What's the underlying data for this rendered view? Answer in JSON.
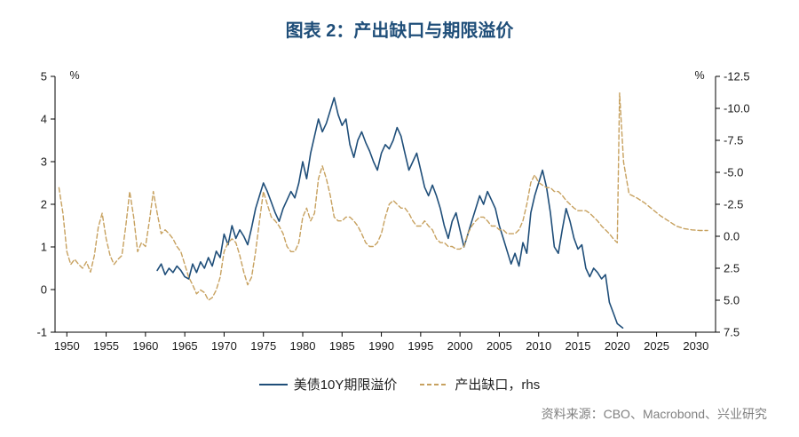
{
  "page": {
    "title": "图表 2：产出缺口与期限溢价",
    "source": "资料来源：CBO、Macrobond、兴业研究"
  },
  "chart_data": {
    "type": "line",
    "title": "图表 2：产出缺口与期限溢价",
    "legend_position": "bottom",
    "x_axis": {
      "min": 1948.5,
      "max": 2032.5,
      "ticks": [
        "1950",
        "1955",
        "1960",
        "1965",
        "1970",
        "1975",
        "1980",
        "1985",
        "1990",
        "1995",
        "2000",
        "2005",
        "2010",
        "2015",
        "2020",
        "2025",
        "2030"
      ]
    },
    "left_axis": {
      "label": "%",
      "min": -1,
      "max": 5,
      "ticks": [
        "5",
        "4",
        "3",
        "2",
        "1",
        "0",
        "-1"
      ]
    },
    "right_axis": {
      "label": "%",
      "top": -12.5,
      "bottom": 7.5,
      "inverted": true,
      "ticks": [
        "-12.5",
        "-10.0",
        "-7.5",
        "-5.0",
        "-2.5",
        "0.0",
        "2.5",
        "5.0",
        "7.5"
      ]
    },
    "series": [
      {
        "name": "美债10Y期限溢价",
        "axis": "left",
        "style": "solid",
        "color": "#1f4e79",
        "width": 1.6,
        "points": [
          [
            1961.5,
            0.45
          ],
          [
            1962,
            0.6
          ],
          [
            1962.5,
            0.35
          ],
          [
            1963,
            0.5
          ],
          [
            1963.5,
            0.4
          ],
          [
            1964,
            0.55
          ],
          [
            1964.5,
            0.45
          ],
          [
            1965,
            0.3
          ],
          [
            1965.5,
            0.25
          ],
          [
            1966,
            0.6
          ],
          [
            1966.5,
            0.4
          ],
          [
            1967,
            0.65
          ],
          [
            1967.5,
            0.5
          ],
          [
            1968,
            0.75
          ],
          [
            1968.5,
            0.55
          ],
          [
            1969,
            0.9
          ],
          [
            1969.5,
            0.75
          ],
          [
            1970,
            1.3
          ],
          [
            1970.5,
            1.05
          ],
          [
            1971,
            1.5
          ],
          [
            1971.5,
            1.2
          ],
          [
            1972,
            1.4
          ],
          [
            1972.5,
            1.25
          ],
          [
            1973,
            1.05
          ],
          [
            1973.5,
            1.45
          ],
          [
            1974,
            1.9
          ],
          [
            1974.5,
            2.2
          ],
          [
            1975,
            2.5
          ],
          [
            1975.5,
            2.3
          ],
          [
            1976,
            2.05
          ],
          [
            1976.5,
            1.8
          ],
          [
            1977,
            1.6
          ],
          [
            1977.5,
            1.9
          ],
          [
            1978,
            2.1
          ],
          [
            1978.5,
            2.3
          ],
          [
            1979,
            2.15
          ],
          [
            1979.5,
            2.5
          ],
          [
            1980,
            3.0
          ],
          [
            1980.5,
            2.6
          ],
          [
            1981,
            3.2
          ],
          [
            1981.5,
            3.6
          ],
          [
            1982,
            4.0
          ],
          [
            1982.5,
            3.7
          ],
          [
            1983,
            3.9
          ],
          [
            1983.5,
            4.2
          ],
          [
            1984,
            4.5
          ],
          [
            1984.5,
            4.1
          ],
          [
            1985,
            3.85
          ],
          [
            1985.5,
            4.0
          ],
          [
            1986,
            3.4
          ],
          [
            1986.5,
            3.1
          ],
          [
            1987,
            3.5
          ],
          [
            1987.5,
            3.7
          ],
          [
            1988,
            3.45
          ],
          [
            1988.5,
            3.25
          ],
          [
            1989,
            3.0
          ],
          [
            1989.5,
            2.8
          ],
          [
            1990,
            3.2
          ],
          [
            1990.5,
            3.4
          ],
          [
            1991,
            3.3
          ],
          [
            1991.5,
            3.5
          ],
          [
            1992,
            3.8
          ],
          [
            1992.5,
            3.6
          ],
          [
            1993,
            3.2
          ],
          [
            1993.5,
            2.8
          ],
          [
            1994,
            3.0
          ],
          [
            1994.5,
            3.2
          ],
          [
            1995,
            2.8
          ],
          [
            1995.5,
            2.4
          ],
          [
            1996,
            2.2
          ],
          [
            1996.5,
            2.45
          ],
          [
            1997,
            2.2
          ],
          [
            1997.5,
            1.9
          ],
          [
            1998,
            1.5
          ],
          [
            1998.5,
            1.2
          ],
          [
            1999,
            1.6
          ],
          [
            1999.5,
            1.8
          ],
          [
            2000,
            1.4
          ],
          [
            2000.5,
            1.0
          ],
          [
            2001,
            1.3
          ],
          [
            2001.5,
            1.6
          ],
          [
            2002,
            1.9
          ],
          [
            2002.5,
            2.2
          ],
          [
            2003,
            2.0
          ],
          [
            2003.5,
            2.3
          ],
          [
            2004,
            2.1
          ],
          [
            2004.5,
            1.9
          ],
          [
            2005,
            1.5
          ],
          [
            2005.5,
            1.2
          ],
          [
            2006,
            0.9
          ],
          [
            2006.5,
            0.6
          ],
          [
            2007,
            0.85
          ],
          [
            2007.5,
            0.55
          ],
          [
            2008,
            1.1
          ],
          [
            2008.5,
            0.85
          ],
          [
            2009,
            1.8
          ],
          [
            2009.5,
            2.2
          ],
          [
            2010,
            2.5
          ],
          [
            2010.5,
            2.8
          ],
          [
            2011,
            2.4
          ],
          [
            2011.5,
            1.8
          ],
          [
            2012,
            1.0
          ],
          [
            2012.5,
            0.85
          ],
          [
            2013,
            1.4
          ],
          [
            2013.5,
            1.9
          ],
          [
            2014,
            1.6
          ],
          [
            2014.5,
            1.2
          ],
          [
            2015,
            0.95
          ],
          [
            2015.5,
            1.05
          ],
          [
            2016,
            0.5
          ],
          [
            2016.5,
            0.3
          ],
          [
            2017,
            0.5
          ],
          [
            2017.5,
            0.4
          ],
          [
            2018,
            0.25
          ],
          [
            2018.5,
            0.35
          ],
          [
            2019,
            -0.3
          ],
          [
            2019.5,
            -0.55
          ],
          [
            2020,
            -0.8
          ],
          [
            2020.7,
            -0.9
          ]
        ]
      },
      {
        "name": "产出缺口，rhs",
        "axis": "right",
        "style": "dashed",
        "color": "#c7a15f",
        "width": 1.4,
        "points": [
          [
            1949,
            -3.8
          ],
          [
            1949.5,
            -1.8
          ],
          [
            1950,
            1.2
          ],
          [
            1950.5,
            2.2
          ],
          [
            1951,
            1.8
          ],
          [
            1951.5,
            2.2
          ],
          [
            1952,
            2.5
          ],
          [
            1952.5,
            2.0
          ],
          [
            1953,
            2.8
          ],
          [
            1953.5,
            1.5
          ],
          [
            1954,
            -0.7
          ],
          [
            1954.5,
            -1.8
          ],
          [
            1955,
            0.2
          ],
          [
            1955.5,
            1.5
          ],
          [
            1956,
            2.2
          ],
          [
            1956.5,
            1.8
          ],
          [
            1957,
            1.5
          ],
          [
            1957.5,
            -0.8
          ],
          [
            1958,
            -3.5
          ],
          [
            1958.5,
            -1.5
          ],
          [
            1959,
            1.2
          ],
          [
            1959.5,
            0.5
          ],
          [
            1960,
            0.8
          ],
          [
            1960.5,
            -1.2
          ],
          [
            1961,
            -3.5
          ],
          [
            1961.5,
            -1.8
          ],
          [
            1962,
            -0.2
          ],
          [
            1962.5,
            -0.5
          ],
          [
            1963,
            -0.2
          ],
          [
            1963.5,
            0.2
          ],
          [
            1964,
            0.8
          ],
          [
            1964.5,
            1.2
          ],
          [
            1965,
            2.2
          ],
          [
            1965.5,
            3.2
          ],
          [
            1966,
            3.8
          ],
          [
            1966.5,
            4.5
          ],
          [
            1967,
            4.2
          ],
          [
            1967.5,
            4.4
          ],
          [
            1968,
            5.0
          ],
          [
            1968.5,
            4.8
          ],
          [
            1969,
            4.2
          ],
          [
            1969.5,
            3.2
          ],
          [
            1970,
            1.2
          ],
          [
            1970.5,
            0.5
          ],
          [
            1971,
            0.2
          ],
          [
            1971.5,
            0.5
          ],
          [
            1972,
            1.5
          ],
          [
            1972.5,
            2.8
          ],
          [
            1973,
            3.8
          ],
          [
            1973.5,
            3.2
          ],
          [
            1974,
            1.2
          ],
          [
            1974.5,
            -1.2
          ],
          [
            1975,
            -3.5
          ],
          [
            1975.5,
            -2.5
          ],
          [
            1976,
            -1.5
          ],
          [
            1976.5,
            -1.2
          ],
          [
            1977,
            -0.8
          ],
          [
            1977.5,
            -0.2
          ],
          [
            1978,
            0.8
          ],
          [
            1978.5,
            1.2
          ],
          [
            1979,
            1.2
          ],
          [
            1979.5,
            0.5
          ],
          [
            1980,
            -1.5
          ],
          [
            1980.5,
            -2.2
          ],
          [
            1981,
            -1.2
          ],
          [
            1981.5,
            -1.8
          ],
          [
            1982,
            -4.5
          ],
          [
            1982.5,
            -5.5
          ],
          [
            1983,
            -4.5
          ],
          [
            1983.5,
            -3.2
          ],
          [
            1984,
            -1.5
          ],
          [
            1984.5,
            -1.2
          ],
          [
            1985,
            -1.2
          ],
          [
            1985.5,
            -1.5
          ],
          [
            1986,
            -1.5
          ],
          [
            1986.5,
            -1.2
          ],
          [
            1987,
            -0.8
          ],
          [
            1987.5,
            -0.2
          ],
          [
            1988,
            0.5
          ],
          [
            1988.5,
            0.8
          ],
          [
            1989,
            0.8
          ],
          [
            1989.5,
            0.5
          ],
          [
            1990,
            -0.2
          ],
          [
            1990.5,
            -1.5
          ],
          [
            1991,
            -2.5
          ],
          [
            1991.5,
            -2.8
          ],
          [
            1992,
            -2.5
          ],
          [
            1992.5,
            -2.2
          ],
          [
            1993,
            -2.2
          ],
          [
            1993.5,
            -1.8
          ],
          [
            1994,
            -1.2
          ],
          [
            1994.5,
            -0.8
          ],
          [
            1995,
            -0.8
          ],
          [
            1995.5,
            -1.2
          ],
          [
            1996,
            -0.8
          ],
          [
            1996.5,
            -0.5
          ],
          [
            1997,
            0.2
          ],
          [
            1997.5,
            0.5
          ],
          [
            1998,
            0.5
          ],
          [
            1998.5,
            0.8
          ],
          [
            1999,
            0.8
          ],
          [
            1999.5,
            1.0
          ],
          [
            2000,
            1.0
          ],
          [
            2000.5,
            0.8
          ],
          [
            2001,
            -0.2
          ],
          [
            2001.5,
            -0.8
          ],
          [
            2002,
            -1.2
          ],
          [
            2002.5,
            -1.5
          ],
          [
            2003,
            -1.5
          ],
          [
            2003.5,
            -1.2
          ],
          [
            2004,
            -0.8
          ],
          [
            2004.5,
            -0.8
          ],
          [
            2005,
            -0.5
          ],
          [
            2005.5,
            -0.5
          ],
          [
            2006,
            -0.2
          ],
          [
            2006.5,
            -0.2
          ],
          [
            2007,
            -0.2
          ],
          [
            2007.5,
            -0.5
          ],
          [
            2008,
            -1.2
          ],
          [
            2008.5,
            -2.5
          ],
          [
            2009,
            -4.2
          ],
          [
            2009.5,
            -4.8
          ],
          [
            2010,
            -4.2
          ],
          [
            2010.5,
            -4.0
          ],
          [
            2011,
            -3.8
          ],
          [
            2011.5,
            -3.8
          ],
          [
            2012,
            -3.5
          ],
          [
            2012.5,
            -3.5
          ],
          [
            2013,
            -3.2
          ],
          [
            2013.5,
            -2.8
          ],
          [
            2014,
            -2.5
          ],
          [
            2014.5,
            -2.2
          ],
          [
            2015,
            -2.0
          ],
          [
            2015.5,
            -2.0
          ],
          [
            2016,
            -2.0
          ],
          [
            2016.5,
            -1.8
          ],
          [
            2017,
            -1.5
          ],
          [
            2017.5,
            -1.2
          ],
          [
            2018,
            -0.8
          ],
          [
            2018.5,
            -0.5
          ],
          [
            2019,
            -0.2
          ],
          [
            2019.5,
            0.2
          ],
          [
            2020,
            0.5
          ],
          [
            2020.3,
            -11.2
          ],
          [
            2020.8,
            -5.8
          ],
          [
            2021.5,
            -3.3
          ],
          [
            2022.5,
            -3.0
          ],
          [
            2023.5,
            -2.6
          ],
          [
            2024.5,
            -2.1
          ],
          [
            2025.5,
            -1.6
          ],
          [
            2026.5,
            -1.2
          ],
          [
            2027.5,
            -0.8
          ],
          [
            2028.5,
            -0.6
          ],
          [
            2029.5,
            -0.5
          ],
          [
            2030.5,
            -0.45
          ],
          [
            2031.5,
            -0.45
          ]
        ]
      }
    ]
  }
}
